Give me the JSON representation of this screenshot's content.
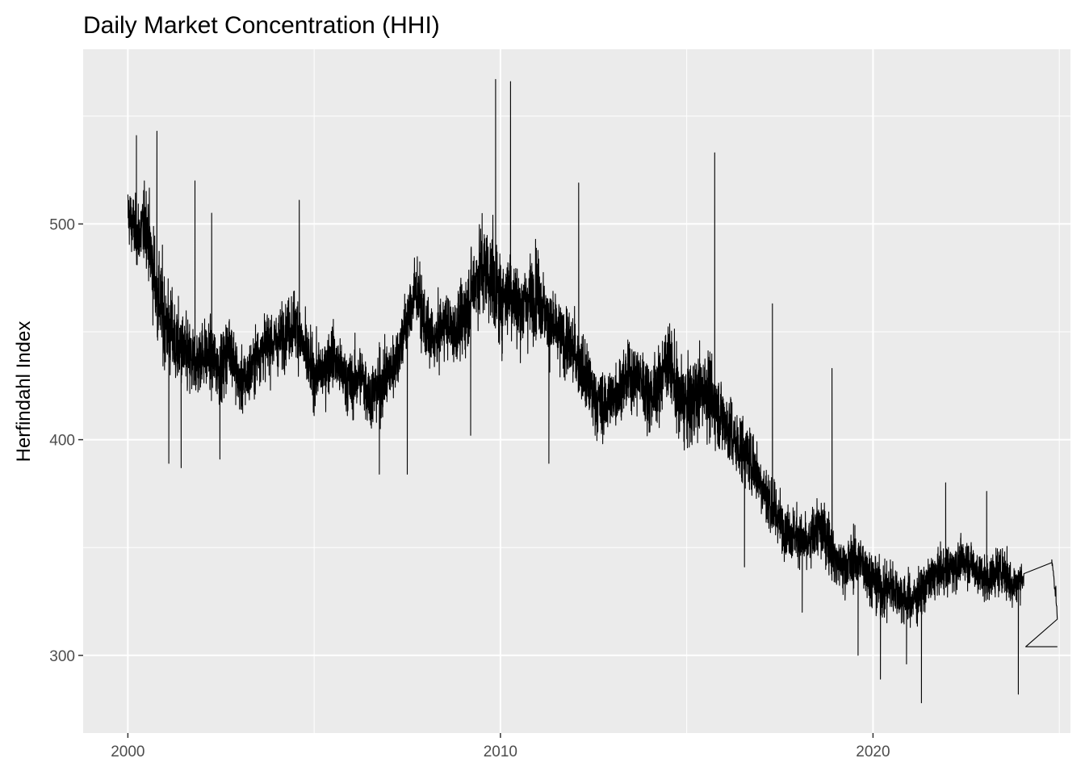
{
  "chart_data": {
    "type": "line",
    "title": "Daily Market Concentration (HHI)",
    "xlabel": "",
    "ylabel": "Herfindahl Index",
    "xlim": [
      1998.8,
      2025.3
    ],
    "ylim": [
      264,
      581
    ],
    "x_ticks": [
      2000,
      2010,
      2020
    ],
    "x_tick_labels": [
      "2000",
      "2010",
      "2020"
    ],
    "y_ticks": [
      300,
      400,
      500
    ],
    "y_tick_labels": [
      "300",
      "400",
      "500"
    ],
    "grid": true,
    "legend": "none",
    "colors": {
      "panel": "#ebebeb",
      "grid": "#ffffff",
      "line": "#000000"
    },
    "series": [
      {
        "x": [
          2000.0,
          2000.25,
          2000.5,
          2000.75,
          2001.0,
          2001.25,
          2001.5,
          2001.75,
          2002.0,
          2002.25,
          2002.5,
          2002.75,
          2003.0,
          2003.25,
          2003.5,
          2003.75,
          2004.0,
          2004.25,
          2004.5,
          2004.75,
          2005.0,
          2005.25,
          2005.5,
          2005.75,
          2006.0,
          2006.25,
          2006.5,
          2006.75,
          2007.0,
          2007.25,
          2007.5,
          2007.75,
          2008.0,
          2008.25,
          2008.5,
          2008.75,
          2009.0,
          2009.25,
          2009.5,
          2009.75,
          2010.0,
          2010.25,
          2010.5,
          2010.75,
          2011.0,
          2011.25,
          2011.5,
          2011.75,
          2012.0,
          2012.25,
          2012.5,
          2012.75,
          2013.0,
          2013.25,
          2013.5,
          2013.75,
          2014.0,
          2014.25,
          2014.5,
          2014.75,
          2015.0,
          2015.25,
          2015.5,
          2015.75,
          2016.0,
          2016.25,
          2016.5,
          2016.75,
          2017.0,
          2017.25,
          2017.5,
          2017.75,
          2018.0,
          2018.25,
          2018.5,
          2018.75,
          2019.0,
          2019.25,
          2019.5,
          2019.75,
          2020.0,
          2020.25,
          2020.5,
          2020.75,
          2021.0,
          2021.25,
          2021.5,
          2021.75,
          2022.0,
          2022.25,
          2022.5,
          2022.75,
          2023.0,
          2023.25,
          2023.5,
          2023.75,
          2024.0,
          2024.8,
          2024.95
        ],
        "y": [
          505,
          495,
          500,
          470,
          455,
          445,
          440,
          435,
          440,
          438,
          432,
          445,
          425,
          430,
          440,
          445,
          445,
          450,
          455,
          440,
          430,
          432,
          440,
          430,
          425,
          430,
          420,
          425,
          430,
          440,
          455,
          470,
          450,
          445,
          455,
          450,
          455,
          470,
          480,
          475,
          465,
          470,
          460,
          465,
          470,
          455,
          450,
          445,
          440,
          430,
          420,
          415,
          420,
          425,
          430,
          428,
          420,
          425,
          440,
          420,
          415,
          420,
          425,
          415,
          410,
          400,
          395,
          390,
          380,
          370,
          362,
          358,
          355,
          350,
          360,
          355,
          345,
          340,
          345,
          342,
          335,
          330,
          332,
          328,
          325,
          328,
          335,
          338,
          340,
          342,
          345,
          340,
          335,
          338,
          340,
          332,
          336,
          343,
          320
        ],
        "noise": [
          15,
          17,
          20,
          25,
          26,
          22,
          20,
          20,
          18,
          18,
          18,
          18,
          16,
          16,
          16,
          16,
          16,
          16,
          18,
          18,
          16,
          16,
          16,
          16,
          17,
          17,
          17,
          18,
          18,
          16,
          18,
          18,
          16,
          16,
          16,
          16,
          20,
          22,
          25,
          25,
          25,
          22,
          22,
          22,
          22,
          18,
          18,
          18,
          18,
          18,
          18,
          18,
          16,
          16,
          18,
          18,
          18,
          18,
          20,
          22,
          22,
          22,
          22,
          20,
          20,
          18,
          18,
          18,
          16,
          16,
          14,
          14,
          14,
          14,
          16,
          16,
          14,
          14,
          15,
          15,
          14,
          15,
          15,
          13,
          13,
          13,
          12,
          12,
          12,
          12,
          12,
          12,
          12,
          12,
          12,
          12,
          8,
          2,
          8
        ],
        "spikes": [
          [
            2000.23,
            541
          ],
          [
            2000.78,
            543
          ],
          [
            2001.1,
            389
          ],
          [
            2001.43,
            387
          ],
          [
            2001.8,
            520
          ],
          [
            2002.25,
            505
          ],
          [
            2002.47,
            391
          ],
          [
            2004.6,
            511
          ],
          [
            2006.75,
            384
          ],
          [
            2007.5,
            384
          ],
          [
            2009.2,
            402
          ],
          [
            2009.87,
            567
          ],
          [
            2010.27,
            566
          ],
          [
            2011.3,
            389
          ],
          [
            2012.1,
            519
          ],
          [
            2015.75,
            533
          ],
          [
            2016.55,
            341
          ],
          [
            2017.3,
            463
          ],
          [
            2018.1,
            320
          ],
          [
            2018.9,
            433
          ],
          [
            2019.6,
            300
          ],
          [
            2020.2,
            289
          ],
          [
            2020.9,
            296
          ],
          [
            2021.3,
            278
          ],
          [
            2021.95,
            380
          ],
          [
            2023.05,
            376
          ],
          [
            2023.9,
            282
          ],
          [
            2024.1,
            304
          ],
          [
            2024.95,
            304
          ]
        ],
        "dense_until": 2024.05
      }
    ]
  }
}
